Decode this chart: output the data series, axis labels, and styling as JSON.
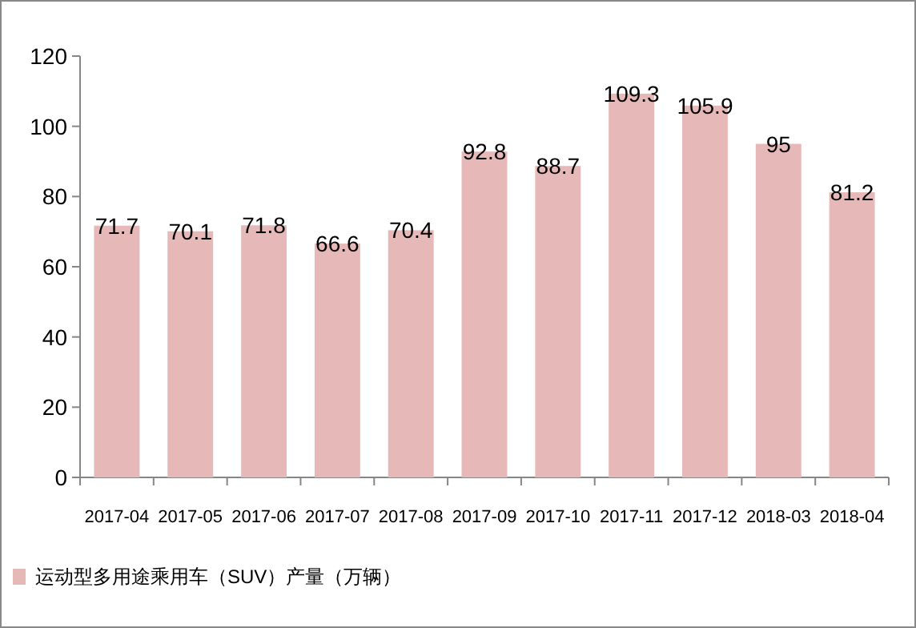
{
  "chart_data": {
    "type": "bar",
    "categories": [
      "2017-04",
      "2017-05",
      "2017-06",
      "2017-07",
      "2017-08",
      "2017-09",
      "2017-10",
      "2017-11",
      "2017-12",
      "2018-03",
      "2018-04"
    ],
    "series": [
      {
        "name": "运动型多用途乘用车（SUV）产量（万辆）",
        "color": "#e6b8b7",
        "values": [
          71.7,
          70.1,
          71.8,
          66.6,
          70.4,
          92.8,
          88.7,
          109.3,
          105.9,
          95,
          81.2
        ]
      }
    ],
    "ylim": [
      0,
      120
    ],
    "yticks": [
      0,
      20,
      40,
      60,
      80,
      100,
      120
    ],
    "data_labels": true,
    "legend": "bottom left",
    "grid": false
  }
}
